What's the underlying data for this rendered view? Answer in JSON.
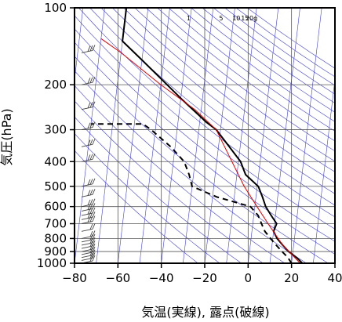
{
  "chart_data": {
    "type": "line",
    "title": "",
    "xlabel": "気温(実線), 露点(破線)",
    "ylabel": "気圧(hPa)",
    "x_range": [
      -80,
      40
    ],
    "y_range_hPa": [
      1000,
      100
    ],
    "y_scale": "log",
    "x_ticks": [
      "−80",
      "−60",
      "−40",
      "−20",
      "0",
      "20",
      "40"
    ],
    "x_tick_values": [
      -80,
      -60,
      -40,
      -20,
      0,
      20,
      40
    ],
    "y_ticks": [
      "100",
      "200",
      "300",
      "400",
      "500",
      "600",
      "700",
      "800",
      "900",
      "1000"
    ],
    "y_tick_values": [
      100,
      200,
      300,
      400,
      500,
      600,
      700,
      800,
      900,
      1000
    ],
    "mixing_ratio_labels": [
      "1",
      "5",
      "10",
      "15",
      "20g"
    ],
    "colors": {
      "temperature": "#000000",
      "dewpoint": "#000000",
      "reference": "#e00000",
      "isopleths": "#4040d0",
      "grid": "#555555",
      "wind": "#444444"
    },
    "series": [
      {
        "name": "気温",
        "style": "solid",
        "points": [
          {
            "t": 25.0,
            "p": 1000
          },
          {
            "t": 22.0,
            "p": 950
          },
          {
            "t": 18.0,
            "p": 900
          },
          {
            "t": 15.0,
            "p": 850
          },
          {
            "t": 12.0,
            "p": 800
          },
          {
            "t": 10.0,
            "p": 750
          },
          {
            "t": 11.0,
            "p": 700
          },
          {
            "t": 8.0,
            "p": 650
          },
          {
            "t": 5.0,
            "p": 600
          },
          {
            "t": 3.0,
            "p": 550
          },
          {
            "t": 0.5,
            "p": 500
          },
          {
            "t": -6.0,
            "p": 450
          },
          {
            "t": -9.0,
            "p": 400
          },
          {
            "t": -15.0,
            "p": 350
          },
          {
            "t": -22.0,
            "p": 300
          },
          {
            "t": -27.0,
            "p": 280
          },
          {
            "t": -39.0,
            "p": 230
          },
          {
            "t": -50.0,
            "p": 190
          },
          {
            "t": -60.0,
            "p": 160
          },
          {
            "t": -70.0,
            "p": 135
          },
          {
            "t": -70.0,
            "p": 100
          }
        ]
      },
      {
        "name": "露点",
        "style": "dashed",
        "points": [
          {
            "t": 20.0,
            "p": 1000
          },
          {
            "t": 18.0,
            "p": 950
          },
          {
            "t": 15.0,
            "p": 900
          },
          {
            "t": 12.0,
            "p": 850
          },
          {
            "t": 9.0,
            "p": 800
          },
          {
            "t": 6.0,
            "p": 750
          },
          {
            "t": 4.0,
            "p": 700
          },
          {
            "t": 2.0,
            "p": 650
          },
          {
            "t": -2.0,
            "p": 600
          },
          {
            "t": -18.0,
            "p": 550
          },
          {
            "t": -30.0,
            "p": 500
          },
          {
            "t": -32.0,
            "p": 450
          },
          {
            "t": -35.0,
            "p": 400
          },
          {
            "t": -42.0,
            "p": 350
          },
          {
            "t": -52.0,
            "p": 300
          },
          {
            "t": -56.0,
            "p": 285
          },
          {
            "t": -80.0,
            "p": 285
          }
        ]
      },
      {
        "name": "reference",
        "style": "solid-red",
        "points": [
          {
            "t": 24.0,
            "p": 1000
          },
          {
            "t": 15.0,
            "p": 850
          },
          {
            "t": 7.0,
            "p": 700
          },
          {
            "t": 1.0,
            "p": 600
          },
          {
            "t": -6.0,
            "p": 500
          },
          {
            "t": -13.0,
            "p": 400
          },
          {
            "t": -22.0,
            "p": 300
          },
          {
            "t": -33.0,
            "p": 250
          },
          {
            "t": -50.0,
            "p": 200
          },
          {
            "t": -70.0,
            "p": 150
          },
          {
            "t": -80.0,
            "p": 132
          }
        ]
      }
    ],
    "wind_barb_levels_hPa": [
      1000,
      975,
      950,
      925,
      900,
      875,
      850,
      825,
      800,
      750,
      700,
      675,
      650,
      625,
      600,
      550,
      500,
      400,
      350,
      300,
      250,
      200,
      150
    ],
    "grid": true,
    "legend": "none"
  }
}
